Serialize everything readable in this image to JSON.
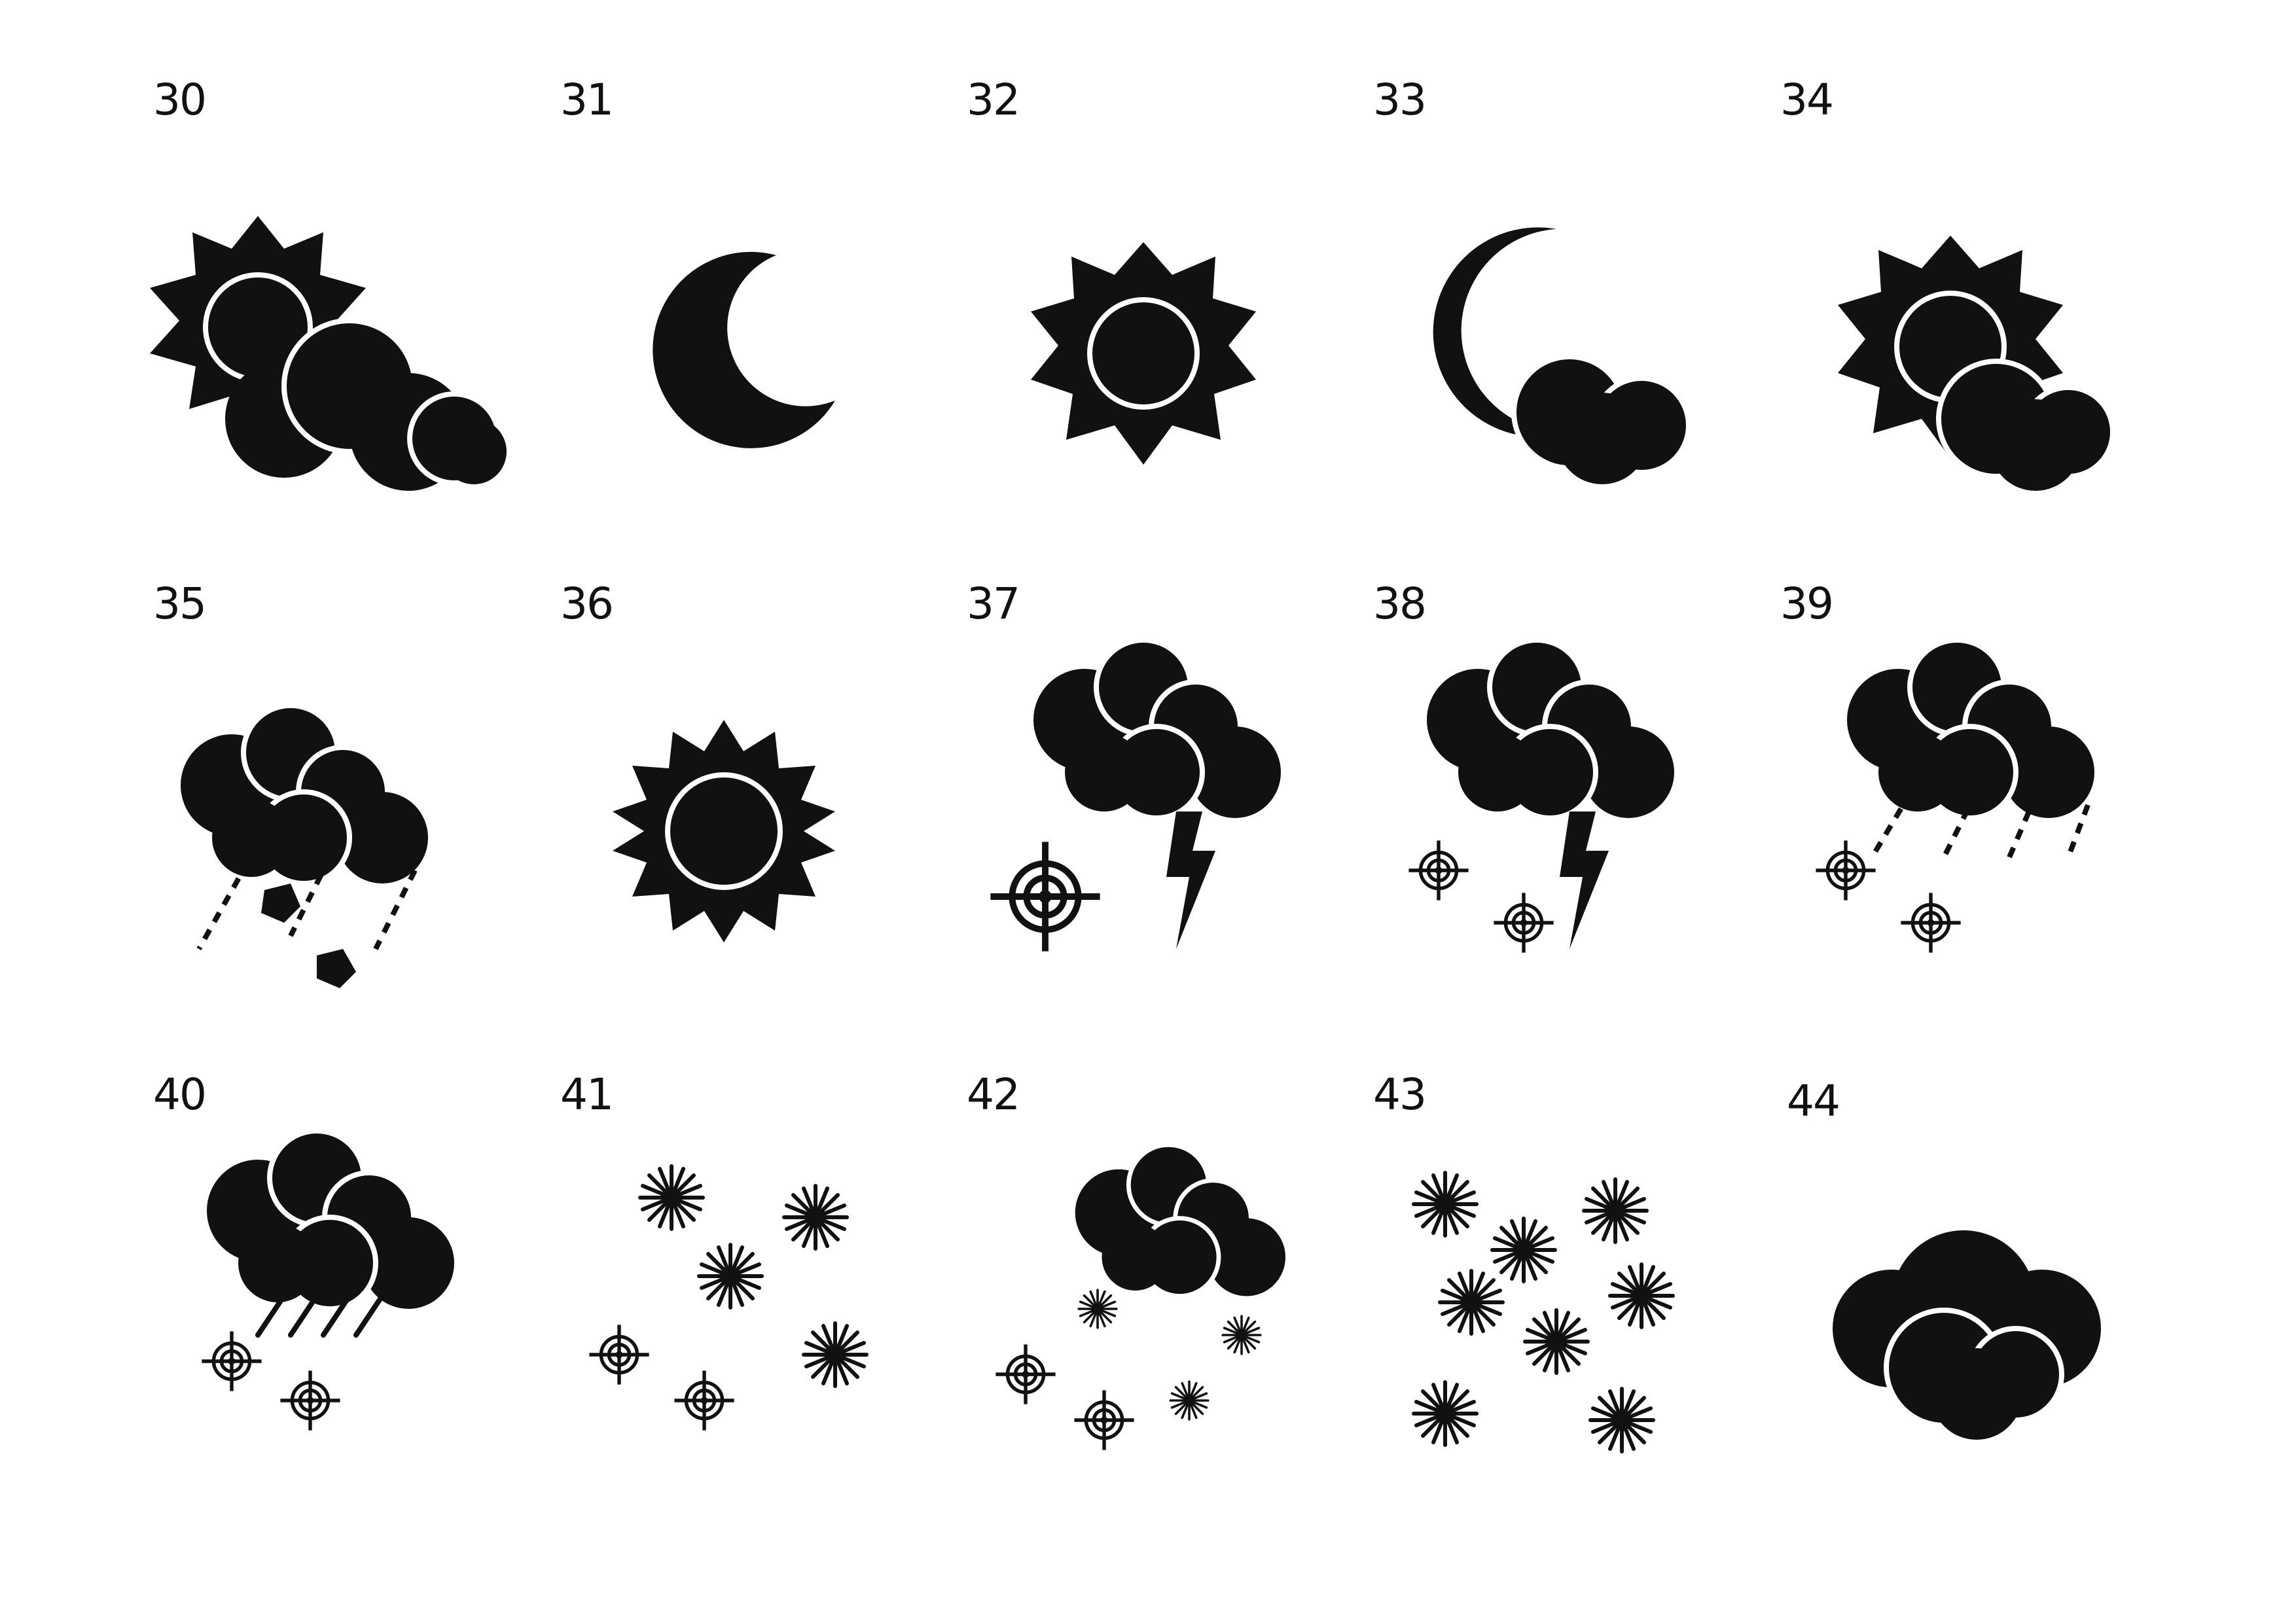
{
  "sheet": {
    "background": "#ffffff",
    "ink": "#111111",
    "icons": [
      {
        "number": "30",
        "icon": "partly-cloudy-day-icon"
      },
      {
        "number": "31",
        "icon": "crescent-moon-icon"
      },
      {
        "number": "32",
        "icon": "sun-icon"
      },
      {
        "number": "33",
        "icon": "partly-cloudy-night-icon"
      },
      {
        "number": "34",
        "icon": "sun-behind-small-cloud-icon"
      },
      {
        "number": "35",
        "icon": "cloud-rain-hail-icon"
      },
      {
        "number": "36",
        "icon": "hot-sun-icon"
      },
      {
        "number": "37",
        "icon": "thunder-snow-icon"
      },
      {
        "number": "38",
        "icon": "thunder-flurries-icon"
      },
      {
        "number": "39",
        "icon": "rain-snow-showers-icon"
      },
      {
        "number": "40",
        "icon": "sleet-icon"
      },
      {
        "number": "41",
        "icon": "snow-mixed-icon"
      },
      {
        "number": "42",
        "icon": "cloud-snow-mixed-icon"
      },
      {
        "number": "43",
        "icon": "heavy-snowfall-icon"
      },
      {
        "number": "44",
        "icon": "overcast-clouds-icon"
      }
    ]
  }
}
